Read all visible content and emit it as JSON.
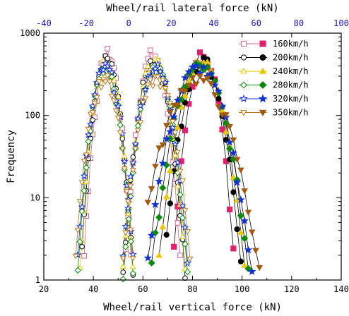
{
  "chart_data": {
    "type": "scatter",
    "xlabel_bottom": "Wheel/rail vertical force (kN)",
    "xlabel_top": "Wheel/rail lateral force (kN)",
    "ylabel": "Frequency",
    "x_bottom_range": [
      20,
      140
    ],
    "x_bottom_ticks": [
      "20",
      "40",
      "60",
      "80",
      "100",
      "120",
      "140"
    ],
    "x_top_range": [
      -40,
      100
    ],
    "x_top_ticks": [
      "-40",
      "-20",
      "0",
      "20",
      "40",
      "60",
      "80",
      "100"
    ],
    "y_scale": "log",
    "y_range": [
      1,
      1000
    ],
    "y_ticks": [
      "1",
      "10",
      "100",
      "1000"
    ],
    "legend_position": "top-right",
    "series": [
      {
        "name": "160km/h",
        "marker": "square",
        "color": "#e0206a",
        "open_color": "#cc6699",
        "lateral": {
          "mean": -10,
          "sd": 3.3,
          "peak": 560
        },
        "left_vertical": {
          "mean": 64,
          "sd": 3.3,
          "peak": 560
        },
        "vertical": {
          "mean": 84.5,
          "sd": 3.6,
          "peak": 560
        }
      },
      {
        "name": "200km/h",
        "marker": "circle",
        "color": "#000000",
        "open_color": "#000000",
        "lateral": {
          "mean": -10.5,
          "sd": 3.6,
          "peak": 470
        },
        "left_vertical": {
          "mean": 64.5,
          "sd": 3.6,
          "peak": 470
        },
        "vertical": {
          "mean": 84,
          "sd": 4.6,
          "peak": 470
        }
      },
      {
        "name": "240km/h",
        "marker": "triangle-up",
        "color": "#e8c800",
        "open_color": "#e8c800",
        "lateral": {
          "mean": -10.5,
          "sd": 3.7,
          "peak": 440
        },
        "left_vertical": {
          "mean": 64.5,
          "sd": 3.7,
          "peak": 440
        },
        "vertical": {
          "mean": 83.5,
          "sd": 5.2,
          "peak": 440
        }
      },
      {
        "name": "280km/h",
        "marker": "diamond",
        "color": "#0a8a0a",
        "open_color": "#0a8a0a",
        "lateral": {
          "mean": -11,
          "sd": 3.8,
          "peak": 400
        },
        "left_vertical": {
          "mean": 65,
          "sd": 3.8,
          "peak": 400
        },
        "vertical": {
          "mean": 83,
          "sd": 5.8,
          "peak": 400
        }
      },
      {
        "name": "320km/h",
        "marker": "star",
        "color": "#1030d0",
        "open_color": "#1030d0",
        "lateral": {
          "mean": -11,
          "sd": 4.0,
          "peak": 380
        },
        "left_vertical": {
          "mean": 65,
          "sd": 4.0,
          "peak": 380
        },
        "vertical": {
          "mean": 82.5,
          "sd": 6.3,
          "peak": 380
        }
      },
      {
        "name": "350km/h",
        "marker": "triangle-down",
        "color": "#a05a10",
        "open_color": "#b87820",
        "lateral": {
          "mean": -11.5,
          "sd": 4.3,
          "peak": 280
        },
        "left_vertical": {
          "mean": 65.5,
          "sd": 4.3,
          "peak": 280
        },
        "vertical": {
          "mean": 82,
          "sd": 7.6,
          "peak": 280
        }
      }
    ]
  }
}
